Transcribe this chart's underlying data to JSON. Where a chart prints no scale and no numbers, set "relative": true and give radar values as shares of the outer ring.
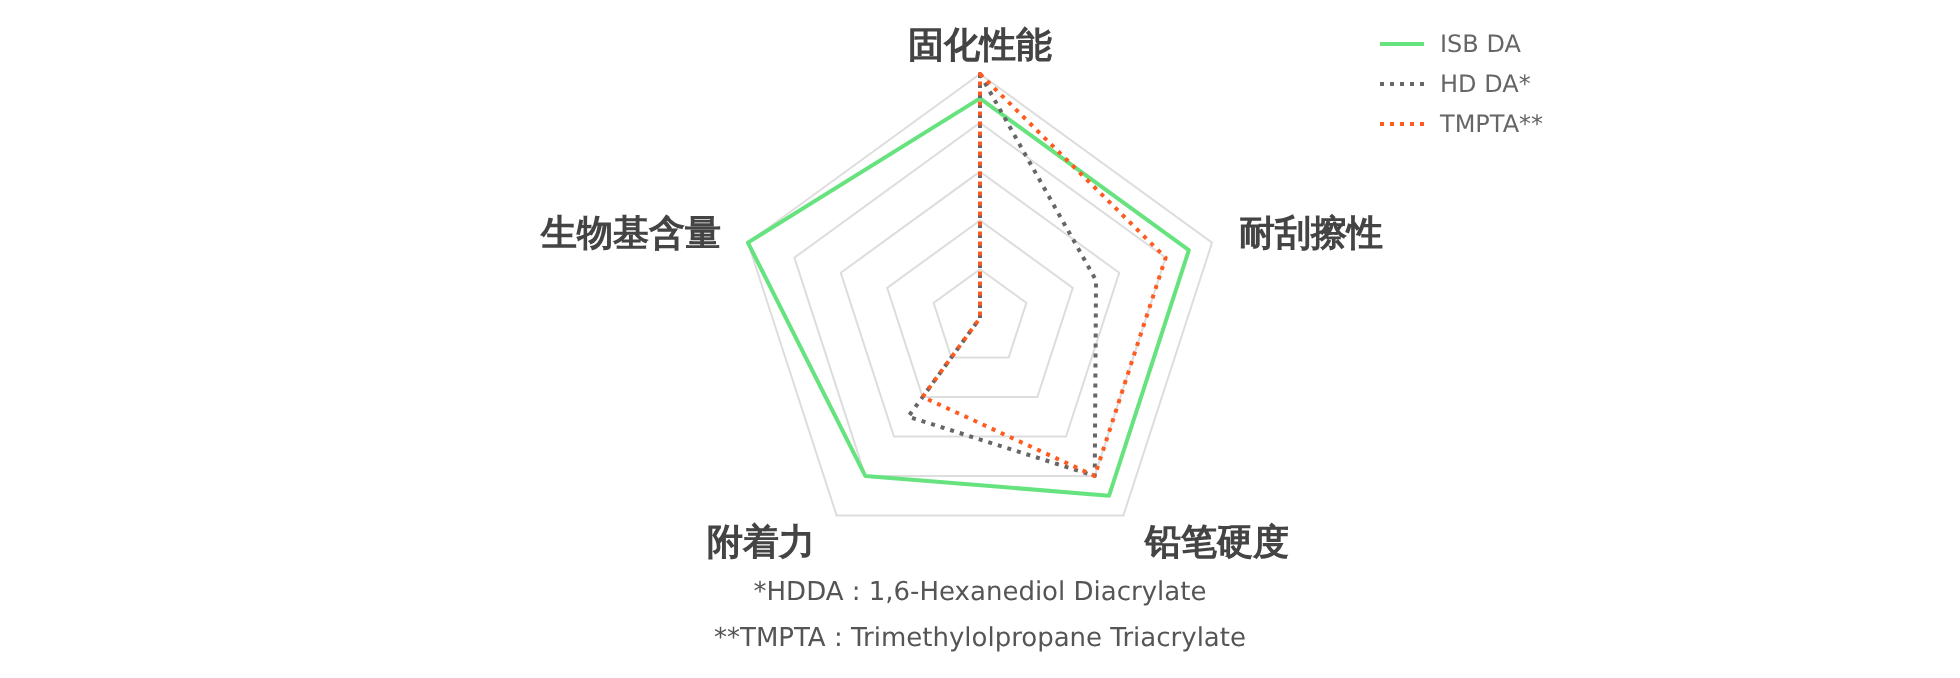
{
  "chart_data": {
    "type": "radar",
    "relative": true,
    "categories": [
      "固化性能",
      "耐刮擦性",
      "铅笔硬度",
      "附着力",
      "生物基含量"
    ],
    "series": [
      {
        "name": "ISB DA",
        "color": "#66e37f",
        "line_style": "solid",
        "values": [
          0.9,
          0.9,
          0.9,
          0.8,
          1.0
        ]
      },
      {
        "name": "HD DA*",
        "color": "#666666",
        "line_style": "dotted",
        "values": [
          1.0,
          0.5,
          0.8,
          0.5,
          0
        ]
      },
      {
        "name": "TMPTA**",
        "color": "#ff5a1f",
        "line_style": "dotted",
        "values": [
          1.0,
          0.8,
          0.8,
          0.4,
          0
        ]
      }
    ],
    "legend": "top right",
    "annotations": [
      "*HDDA : 1,6-Hexanediol Diacrylate",
      "**TMPTA : Trimethylolpropane Triacrylate"
    ]
  }
}
